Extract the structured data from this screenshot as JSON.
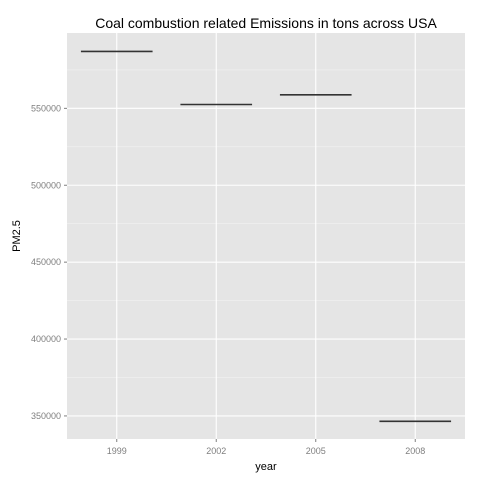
{
  "chart_data": {
    "type": "crossbar",
    "title": "Coal combustion related Emissions in tons across USA",
    "xlabel": "year",
    "ylabel": "PM2.5",
    "categories": [
      "1999",
      "2002",
      "2005",
      "2008"
    ],
    "values": [
      587000,
      552500,
      558800,
      346500
    ],
    "yticks": [
      350000,
      400000,
      450000,
      500000,
      550000
    ],
    "ytick_labels": [
      "350000",
      "400000",
      "450000",
      "500000",
      "550000"
    ],
    "ylim": [
      335000,
      599000
    ],
    "grid": true,
    "legend": "none",
    "colors": {
      "panel_background": "#e5e5e5",
      "grid_major": "#ffffff",
      "grid_minor": "#f2f2f2",
      "bar_line": "#333333",
      "tick_label": "#7f7f7f"
    }
  }
}
